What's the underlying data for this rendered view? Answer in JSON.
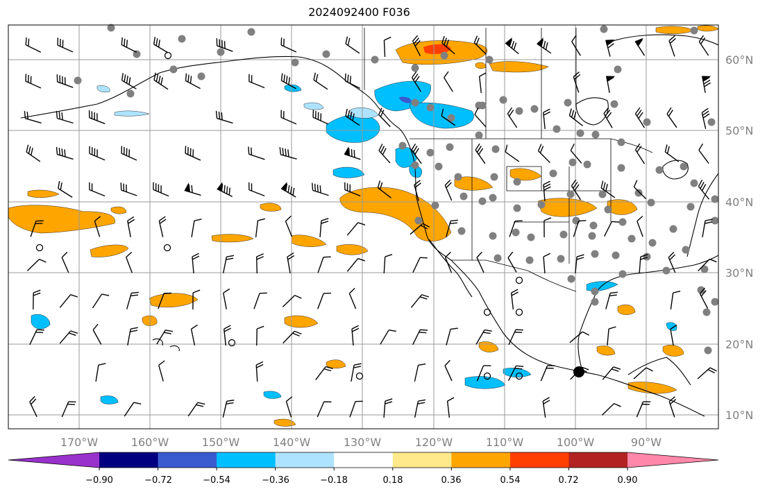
{
  "title": "2024092400 F036",
  "map": {
    "lat_labels": [
      "60°N",
      "50°N",
      "40°N",
      "30°N",
      "20°N",
      "10°N"
    ],
    "lon_labels": [
      "170°W",
      "160°W",
      "150°W",
      "140°W",
      "130°W",
      "120°W",
      "110°W",
      "100°W",
      "90°W"
    ],
    "gridline_color": "#999999"
  },
  "colorbar": {
    "ticks": [
      "−0.90",
      "−0.72",
      "−0.54",
      "−0.36",
      "−0.18",
      "0.18",
      "0.36",
      "0.54",
      "0.72",
      "0.90"
    ],
    "colors": [
      "#9932cc",
      "#000080",
      "#3a5bcf",
      "#00bfff",
      "#aee3ff",
      "#ffffff",
      "#ffe98a",
      "#ffa500",
      "#ff4000",
      "#b22222",
      "#ff88aa"
    ]
  },
  "colors": {
    "orange": "#ffa500",
    "light_yellow": "#ffe98a",
    "blue": "#00bfff",
    "light_blue": "#aee3ff",
    "station_gray": "#808080"
  }
}
